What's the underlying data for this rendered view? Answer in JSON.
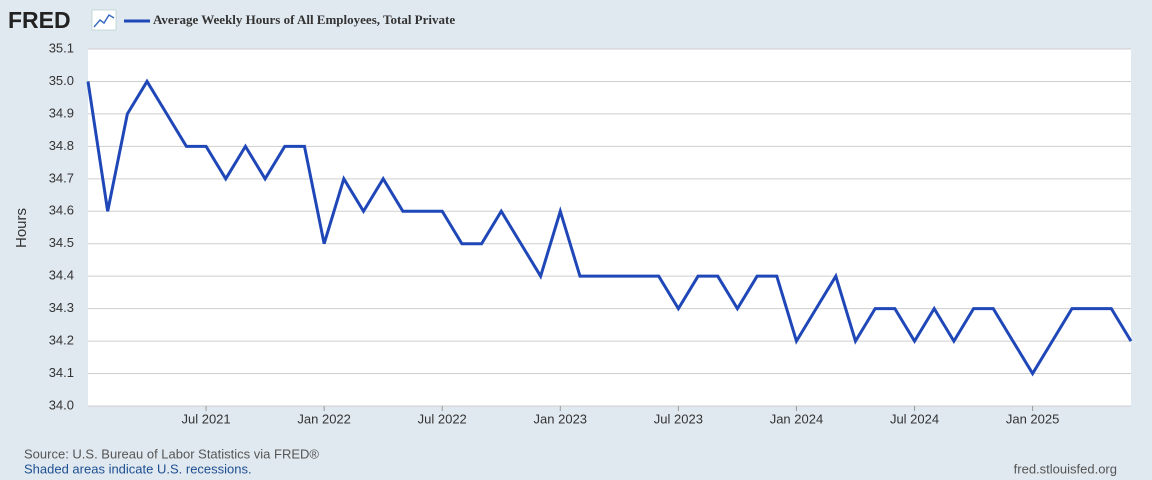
{
  "chart_data": {
    "type": "line",
    "logo": "FRED",
    "title": "Average Weekly Hours of All Employees, Total Private",
    "y_label": "Hours",
    "source": "Source: U.S. Bureau of Labor Statistics via FRED®",
    "note": "Shaded areas indicate U.S. recessions.",
    "site": "fred.stlouisfed.org",
    "categories": [
      null,
      null,
      null,
      null,
      null,
      null,
      "Jul 2021",
      null,
      null,
      null,
      null,
      null,
      "Jan 2022",
      null,
      null,
      null,
      null,
      null,
      "Jul 2022",
      null,
      null,
      null,
      null,
      null,
      "Jan 2023",
      null,
      null,
      null,
      null,
      null,
      "Jul 2023",
      null,
      null,
      null,
      null,
      null,
      "Jan 2024",
      null,
      null,
      null,
      null,
      null,
      "Jul 2024",
      null,
      null,
      null,
      null,
      null,
      "Jan 2025",
      null,
      null,
      null,
      null,
      null
    ],
    "series": [
      {
        "name": "Average Weekly Hours of All Employees, Total Private",
        "color": "#1f47b8",
        "values": [
          35.0,
          34.6,
          34.9,
          35.0,
          34.9,
          34.8,
          34.8,
          34.7,
          34.8,
          34.7,
          34.8,
          34.8,
          34.5,
          34.7,
          34.6,
          34.7,
          34.6,
          34.6,
          34.6,
          34.5,
          34.5,
          34.6,
          34.5,
          34.4,
          34.6,
          34.4,
          34.4,
          34.4,
          34.4,
          34.4,
          34.3,
          34.4,
          34.4,
          34.3,
          34.4,
          34.4,
          34.2,
          34.3,
          34.4,
          34.2,
          34.3,
          34.3,
          34.2,
          34.3,
          34.2,
          34.3,
          34.3,
          34.2,
          34.1,
          34.2,
          34.3,
          34.3,
          34.3,
          34.2
        ]
      }
    ],
    "ylim": [
      34.0,
      35.1
    ],
    "yticks": [
      {
        "value": 34.0,
        "label": "34.0"
      },
      34.1,
      34.2,
      34.3,
      34.4,
      34.5,
      34.6,
      34.7,
      34.8,
      34.9,
      {
        "value": 35.0,
        "label": "35.0"
      },
      35.1
    ],
    "grid": true
  }
}
